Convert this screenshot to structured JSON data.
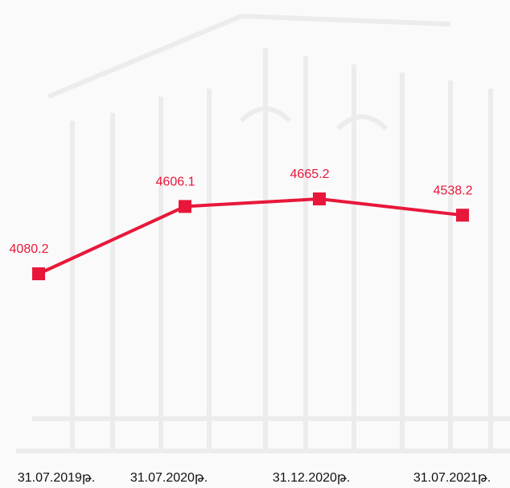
{
  "chart_data": {
    "type": "line",
    "categories": [
      "31.07.2019թ.",
      "31.07.2020թ.",
      "31.12.2020թ.",
      "31.07.2021թ."
    ],
    "series": [
      {
        "name": null,
        "color": "#e8173a",
        "values": [
          4080.2,
          4606.1,
          4665.2,
          4538.2
        ]
      }
    ]
  }
}
